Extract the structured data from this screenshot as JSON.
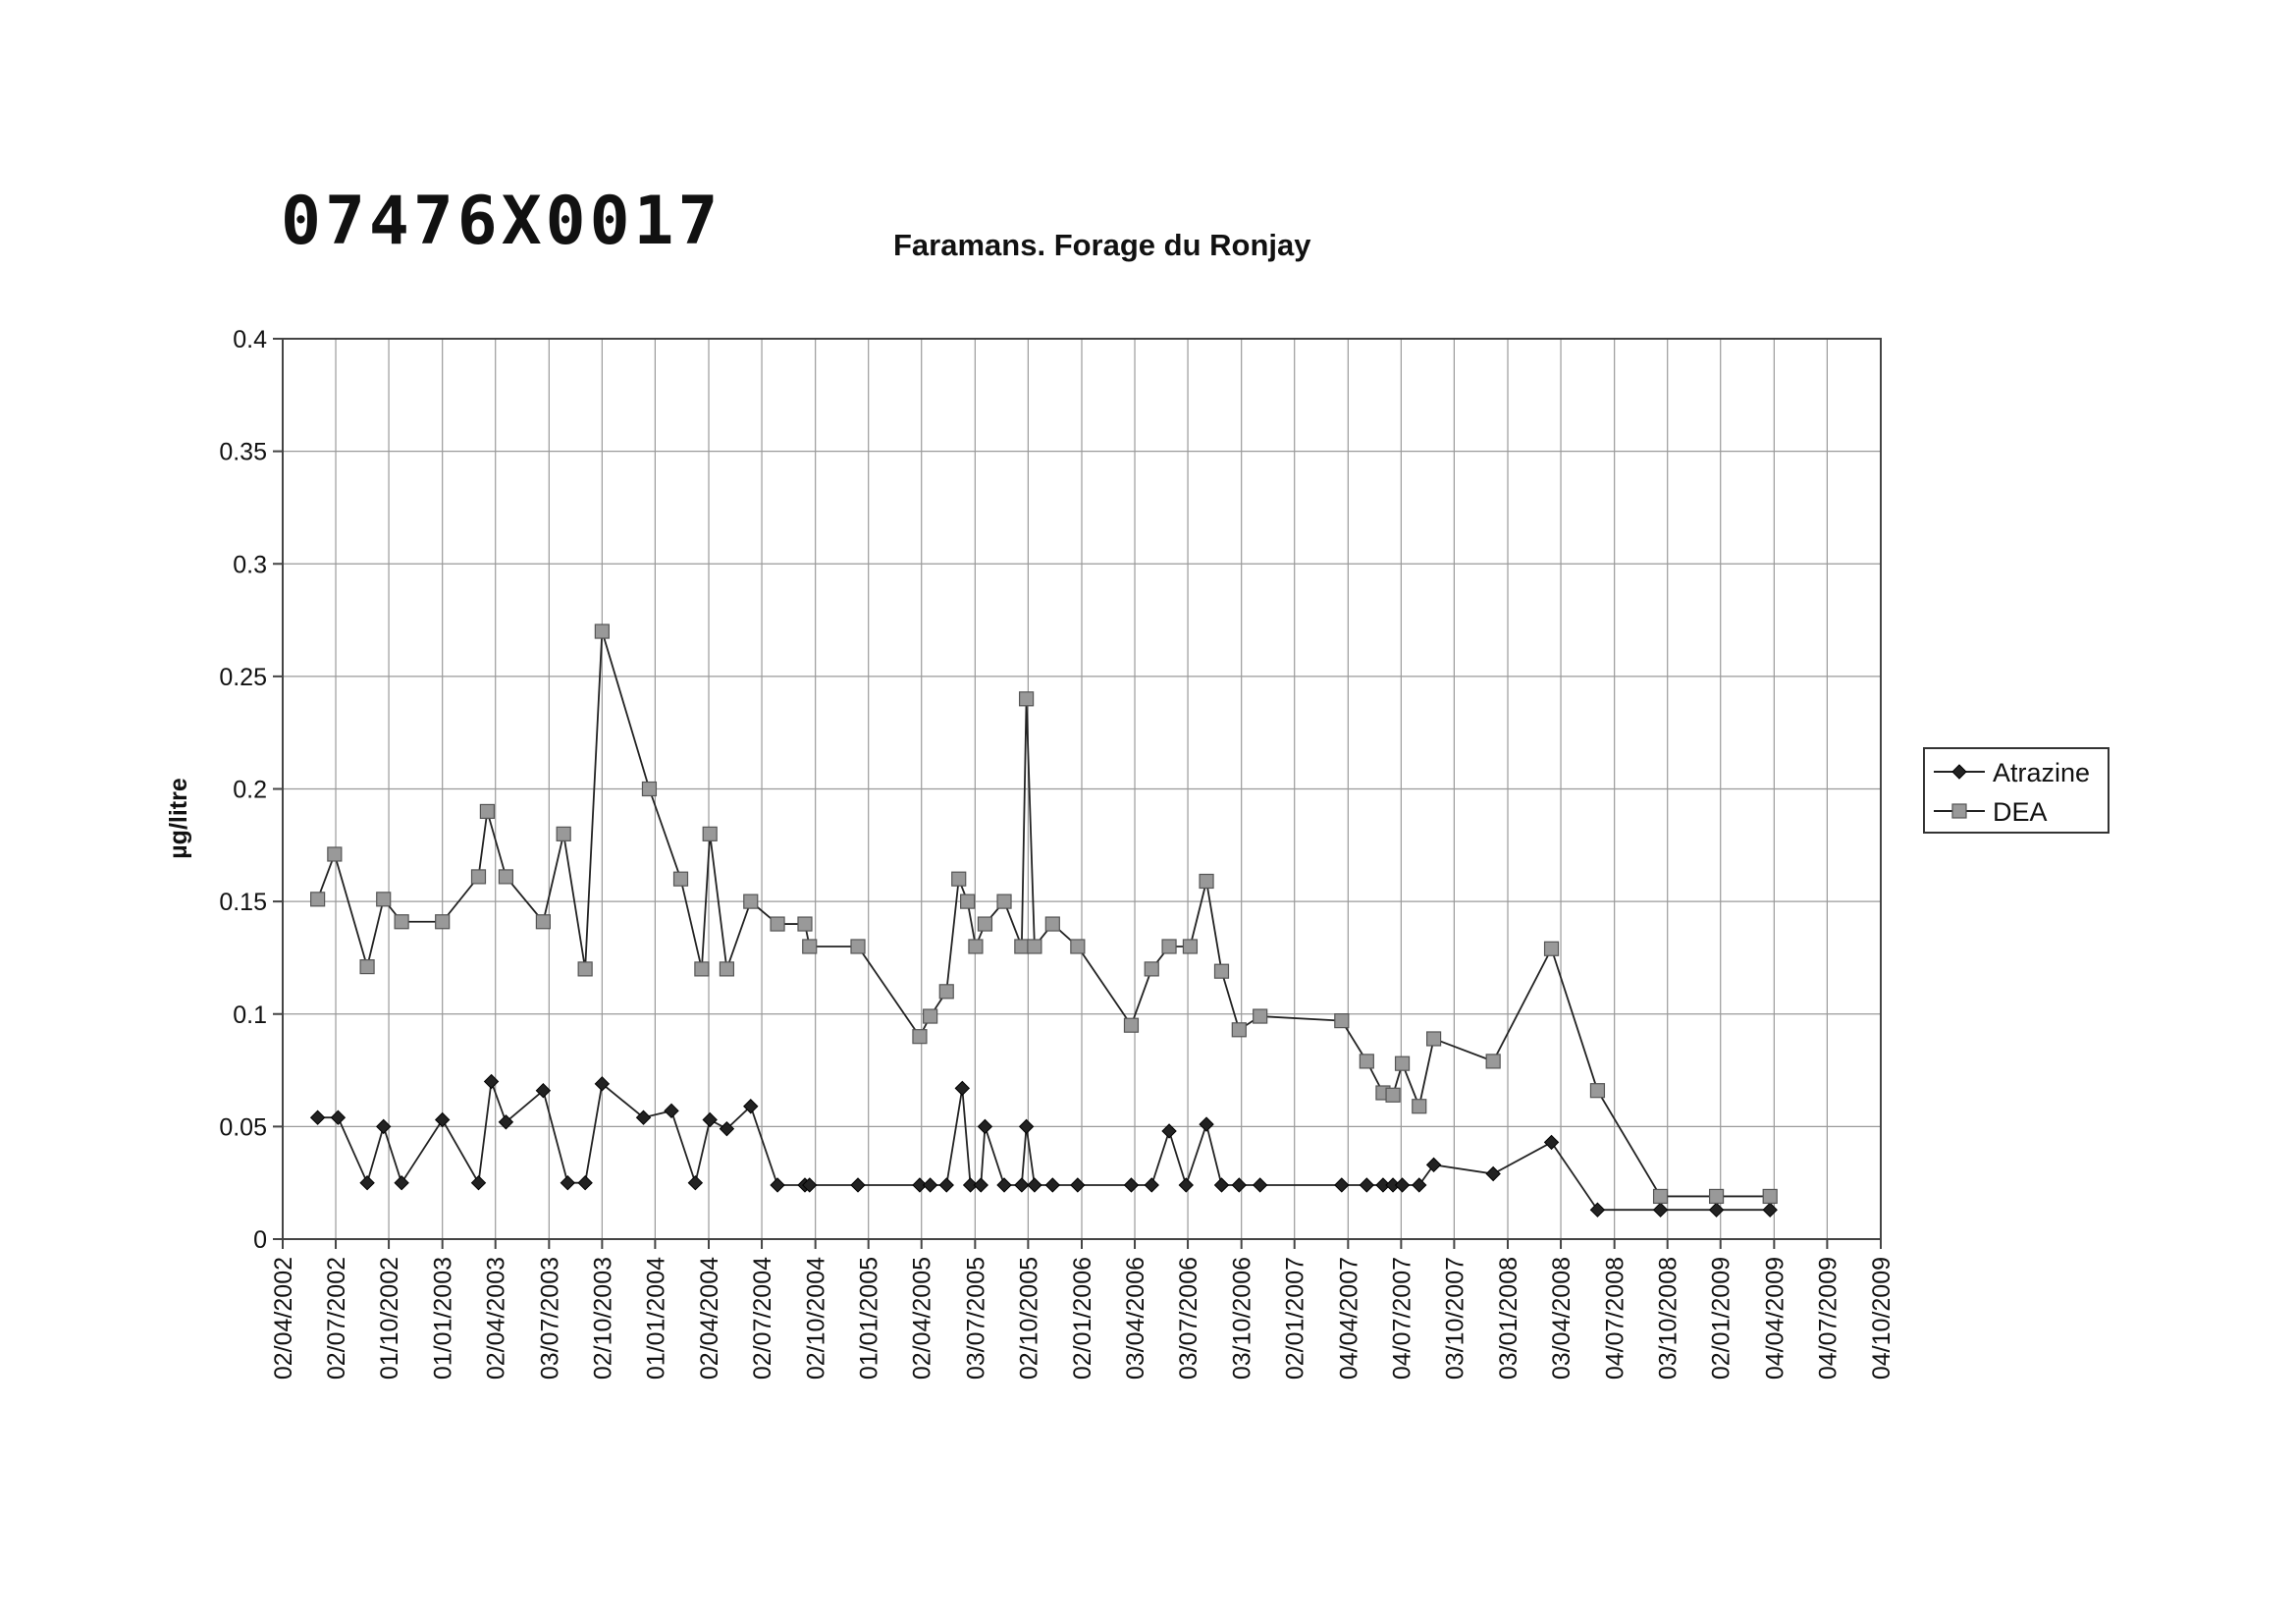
{
  "header": {
    "code": "07476X0017",
    "station": "Faramans. Forage du Ronjay"
  },
  "chart_data": {
    "type": "line",
    "title": "Faramans. Forage du Ronjay",
    "xlabel": "",
    "ylabel": "µg/litre",
    "ylim": [
      0,
      0.4
    ],
    "yticks": [
      "0",
      "0.05",
      "0.1",
      "0.15",
      "0.2",
      "0.25",
      "0.3",
      "0.35",
      "0.4"
    ],
    "xlim": [
      "2002-04-02",
      "2009-10-04"
    ],
    "xticks": [
      "02/04/2002",
      "02/07/2002",
      "01/10/2002",
      "01/01/2003",
      "02/04/2003",
      "03/07/2003",
      "02/10/2003",
      "01/01/2004",
      "02/04/2004",
      "02/07/2004",
      "02/10/2004",
      "01/01/2005",
      "02/04/2005",
      "03/07/2005",
      "02/10/2005",
      "02/01/2006",
      "03/04/2006",
      "03/07/2006",
      "03/10/2006",
      "02/01/2007",
      "04/04/2007",
      "04/07/2007",
      "03/10/2007",
      "03/01/2008",
      "03/04/2008",
      "04/07/2008",
      "03/10/2008",
      "02/01/2009",
      "04/04/2009",
      "04/07/2009",
      "04/10/2009"
    ],
    "grid": true,
    "legend_position": "right",
    "series": [
      {
        "name": "Atrazine",
        "color": "#222222",
        "marker": "diamond",
        "points": [
          [
            "2002-06-01",
            0.054
          ],
          [
            "2002-07-06",
            0.054
          ],
          [
            "2002-08-25",
            0.025
          ],
          [
            "2002-09-22",
            0.05
          ],
          [
            "2002-10-23",
            0.025
          ],
          [
            "2003-01-01",
            0.053
          ],
          [
            "2003-03-04",
            0.025
          ],
          [
            "2003-03-26",
            0.07
          ],
          [
            "2003-04-20",
            0.052
          ],
          [
            "2003-06-23",
            0.066
          ],
          [
            "2003-08-04",
            0.025
          ],
          [
            "2003-09-03",
            0.025
          ],
          [
            "2003-10-02",
            0.069
          ],
          [
            "2003-12-12",
            0.054
          ],
          [
            "2004-01-29",
            0.057
          ],
          [
            "2004-03-10",
            0.025
          ],
          [
            "2004-04-04",
            0.053
          ],
          [
            "2004-05-03",
            0.049
          ],
          [
            "2004-06-13",
            0.059
          ],
          [
            "2004-07-29",
            0.024
          ],
          [
            "2004-09-14",
            0.024
          ],
          [
            "2004-09-22",
            0.024
          ],
          [
            "2004-12-14",
            0.024
          ],
          [
            "2005-03-30",
            0.024
          ],
          [
            "2005-04-17",
            0.024
          ],
          [
            "2005-05-15",
            0.024
          ],
          [
            "2005-06-11",
            0.067
          ],
          [
            "2005-06-25",
            0.024
          ],
          [
            "2005-07-13",
            0.024
          ],
          [
            "2005-07-20",
            0.05
          ],
          [
            "2005-08-22",
            0.024
          ],
          [
            "2005-09-21",
            0.024
          ],
          [
            "2005-09-29",
            0.05
          ],
          [
            "2005-10-13",
            0.024
          ],
          [
            "2005-11-13",
            0.024
          ],
          [
            "2005-12-26",
            0.024
          ],
          [
            "2006-03-28",
            0.024
          ],
          [
            "2006-05-02",
            0.024
          ],
          [
            "2006-06-01",
            0.048
          ],
          [
            "2006-06-30",
            0.024
          ],
          [
            "2006-08-04",
            0.051
          ],
          [
            "2006-08-30",
            0.024
          ],
          [
            "2006-09-29",
            0.024
          ],
          [
            "2006-11-04",
            0.024
          ],
          [
            "2007-03-24",
            0.024
          ],
          [
            "2007-05-06",
            0.024
          ],
          [
            "2007-06-03",
            0.024
          ],
          [
            "2007-06-20",
            0.024
          ],
          [
            "2007-07-06",
            0.024
          ],
          [
            "2007-08-04",
            0.024
          ],
          [
            "2007-08-29",
            0.033
          ],
          [
            "2007-12-09",
            0.029
          ],
          [
            "2008-03-18",
            0.043
          ],
          [
            "2008-06-05",
            0.013
          ],
          [
            "2008-09-21",
            0.013
          ],
          [
            "2008-12-26",
            0.013
          ],
          [
            "2009-03-28",
            0.013
          ]
        ]
      },
      {
        "name": "DEA",
        "color": "#999999",
        "marker": "square",
        "points": [
          [
            "2002-06-01",
            0.151
          ],
          [
            "2002-06-30",
            0.171
          ],
          [
            "2002-08-25",
            0.121
          ],
          [
            "2002-09-22",
            0.151
          ],
          [
            "2002-10-23",
            0.141
          ],
          [
            "2003-01-01",
            0.141
          ],
          [
            "2003-03-04",
            0.161
          ],
          [
            "2003-03-19",
            0.19
          ],
          [
            "2003-04-20",
            0.161
          ],
          [
            "2003-06-23",
            0.141
          ],
          [
            "2003-07-28",
            0.18
          ],
          [
            "2003-09-03",
            0.12
          ],
          [
            "2003-10-02",
            0.27
          ],
          [
            "2003-12-22",
            0.2
          ],
          [
            "2004-02-14",
            0.16
          ],
          [
            "2004-03-21",
            0.12
          ],
          [
            "2004-04-04",
            0.18
          ],
          [
            "2004-05-03",
            0.12
          ],
          [
            "2004-06-13",
            0.15
          ],
          [
            "2004-07-29",
            0.14
          ],
          [
            "2004-09-14",
            0.14
          ],
          [
            "2004-09-22",
            0.13
          ],
          [
            "2004-12-14",
            0.13
          ],
          [
            "2005-03-30",
            0.09
          ],
          [
            "2005-04-17",
            0.099
          ],
          [
            "2005-05-15",
            0.11
          ],
          [
            "2005-06-05",
            0.16
          ],
          [
            "2005-06-20",
            0.15
          ],
          [
            "2005-07-04",
            0.13
          ],
          [
            "2005-07-20",
            0.14
          ],
          [
            "2005-08-22",
            0.15
          ],
          [
            "2005-09-21",
            0.13
          ],
          [
            "2005-09-29",
            0.24
          ],
          [
            "2005-10-13",
            0.13
          ],
          [
            "2005-11-13",
            0.14
          ],
          [
            "2005-12-26",
            0.13
          ],
          [
            "2006-03-28",
            0.095
          ],
          [
            "2006-05-02",
            0.12
          ],
          [
            "2006-06-01",
            0.13
          ],
          [
            "2006-07-07",
            0.13
          ],
          [
            "2006-08-04",
            0.159
          ],
          [
            "2006-08-30",
            0.119
          ],
          [
            "2006-09-29",
            0.093
          ],
          [
            "2006-11-04",
            0.099
          ],
          [
            "2007-03-24",
            0.097
          ],
          [
            "2007-05-06",
            0.079
          ],
          [
            "2007-06-03",
            0.065
          ],
          [
            "2007-06-20",
            0.064
          ],
          [
            "2007-07-06",
            0.078
          ],
          [
            "2007-08-04",
            0.059
          ],
          [
            "2007-08-29",
            0.089
          ],
          [
            "2007-12-09",
            0.079
          ],
          [
            "2008-03-18",
            0.129
          ],
          [
            "2008-06-05",
            0.066
          ],
          [
            "2008-09-21",
            0.019
          ],
          [
            "2008-12-26",
            0.019
          ],
          [
            "2009-03-28",
            0.019
          ]
        ]
      }
    ]
  }
}
